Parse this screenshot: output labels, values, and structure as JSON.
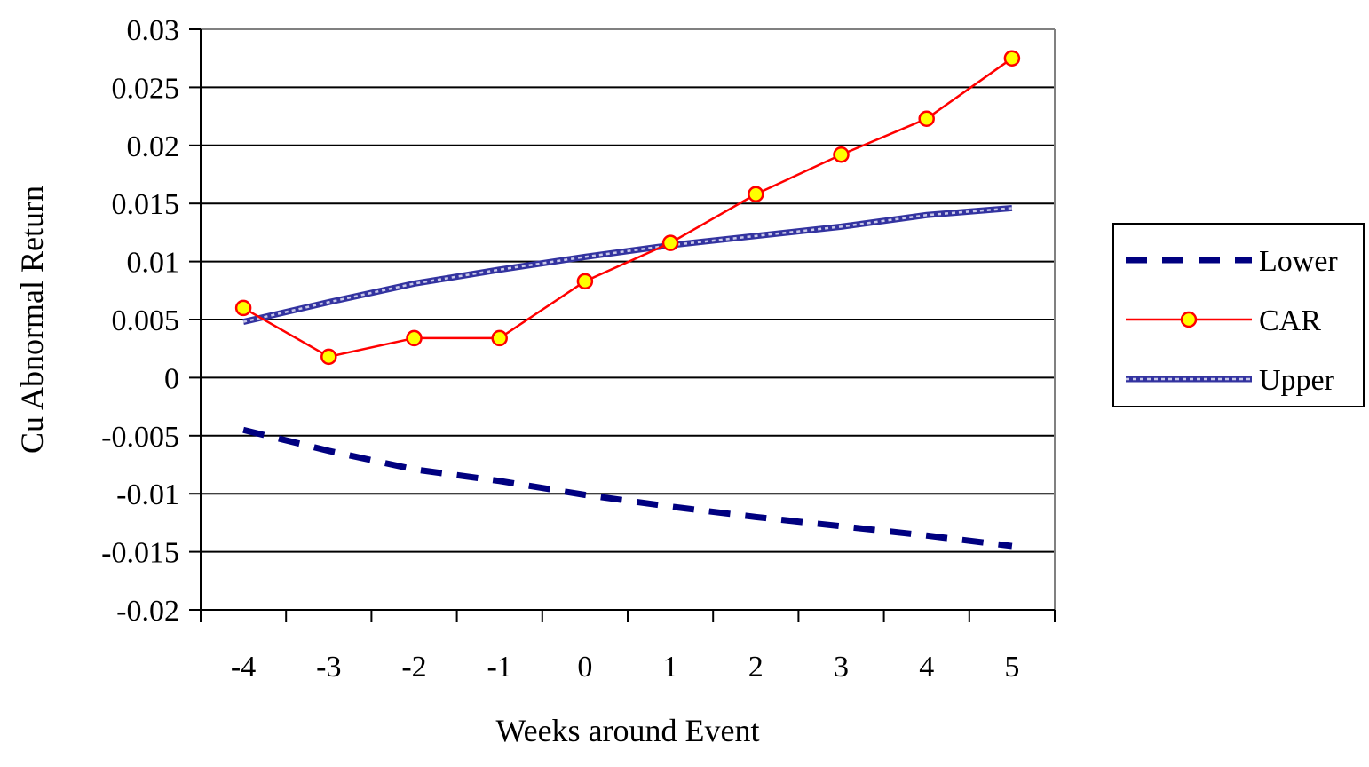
{
  "chart_data": {
    "type": "line",
    "title": "",
    "xlabel": "Weeks around Event",
    "ylabel": "Cu Abnormal Return",
    "categories": [
      "-4",
      "-3",
      "-2",
      "-1",
      "0",
      "1",
      "2",
      "3",
      "4",
      "5"
    ],
    "ylim": [
      -0.02,
      0.03
    ],
    "yticks": [
      "0.03",
      "0.025",
      "0.02",
      "0.015",
      "0.01",
      "0.005",
      "0",
      "-0.005",
      "-0.01",
      "-0.015",
      "-0.02"
    ],
    "grid": "horizontal",
    "legend_position": "right",
    "series": [
      {
        "name": "Lower",
        "color": "#000080",
        "style": "dashed",
        "values": [
          -0.0045,
          -0.0063,
          -0.0079,
          -0.0089,
          -0.0101,
          -0.0111,
          -0.012,
          -0.0128,
          -0.0136,
          -0.0145
        ]
      },
      {
        "name": "CAR",
        "color": "#ff0000",
        "marker_fill": "#ffff00",
        "style": "solid-with-markers",
        "values": [
          0.006,
          0.0018,
          0.0034,
          0.0034,
          0.0083,
          0.0116,
          0.0158,
          0.0192,
          0.0223,
          0.0275
        ]
      },
      {
        "name": "Upper",
        "color": "#3333a0",
        "style": "hatched",
        "values": [
          0.0048,
          0.0065,
          0.0081,
          0.0093,
          0.0104,
          0.0114,
          0.0122,
          0.013,
          0.014,
          0.0146
        ]
      }
    ]
  }
}
